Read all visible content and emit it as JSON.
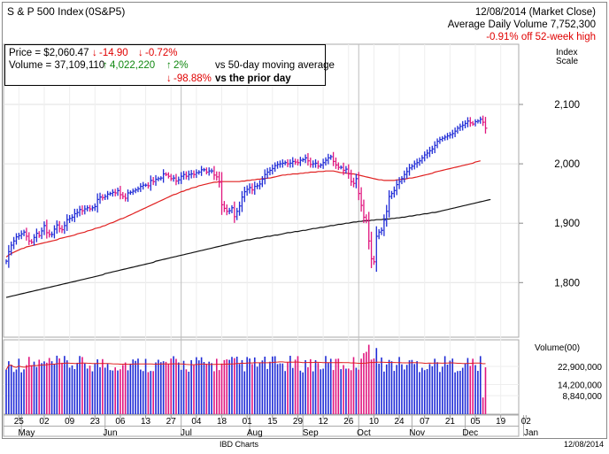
{
  "header": {
    "title": "S & P 500 Index",
    "symbol": "(0S&P5)",
    "date_line": "12/08/2014 (Market Close)",
    "avg_volume_line": "Average Daily Volume 7,752,300",
    "off_high_line": "-0.91% off 52-week high"
  },
  "info_box": {
    "price_label": "Price = $2,060.47",
    "price_change": "-14.90",
    "price_change_pct": "-0.72%",
    "volume_label": "Volume = 37,109,110",
    "volume_change": "4,022,220",
    "volume_change_pct": "2%",
    "vs_50day": "vs 50-day moving average",
    "prior_day_pct": "-98.88%",
    "vs_prior": "vs the prior day"
  },
  "axis": {
    "index_scale_line1": "Index",
    "index_scale_line2": "Scale",
    "volume_title": "Volume(00)"
  },
  "footer": {
    "source": "IBD Charts",
    "date": "12/08/2014"
  },
  "colors": {
    "up_bar": "#1f2bd6",
    "down_bar": "#e0157e",
    "ma50": "#e02020",
    "ma200": "#111111",
    "volume_ma": "#e02020",
    "red_text": "#e00000",
    "green_text": "#118811"
  },
  "chart_data": {
    "type": "ohlc",
    "price_ticks": [
      {
        "value": 1800,
        "label": "1,800"
      },
      {
        "value": 1900,
        "label": "1,900"
      },
      {
        "value": 2000,
        "label": "2,000"
      },
      {
        "value": 2100,
        "label": "2,100"
      }
    ],
    "volume_ticks": [
      {
        "value": 88400,
        "label": "8,840,000"
      },
      {
        "value": 142000,
        "label": "14,200,000"
      },
      {
        "value": 229000,
        "label": "22,900,000"
      }
    ],
    "x_day_labels": [
      {
        "day": 5,
        "label": "25"
      },
      {
        "day": 15,
        "label": "02"
      },
      {
        "day": 25,
        "label": "09"
      },
      {
        "day": 35,
        "label": "23"
      },
      {
        "day": 45,
        "label": "06"
      },
      {
        "day": 55,
        "label": "13"
      },
      {
        "day": 65,
        "label": "27"
      },
      {
        "day": 75,
        "label": "04"
      },
      {
        "day": 85,
        "label": "18"
      },
      {
        "day": 95,
        "label": "01"
      },
      {
        "day": 105,
        "label": "15"
      },
      {
        "day": 115,
        "label": "29"
      },
      {
        "day": 125,
        "label": "12"
      },
      {
        "day": 135,
        "label": "26"
      },
      {
        "day": 145,
        "label": "10"
      },
      {
        "day": 155,
        "label": "24"
      },
      {
        "day": 165,
        "label": "07"
      },
      {
        "day": 175,
        "label": "21"
      },
      {
        "day": 185,
        "label": "05"
      },
      {
        "day": 195,
        "label": "19"
      },
      {
        "day": 205,
        "label": "02"
      }
    ],
    "x_month_labels": [
      {
        "day": 8,
        "label": "May"
      },
      {
        "day": 41,
        "label": "Jun"
      },
      {
        "day": 71,
        "label": "Jul"
      },
      {
        "day": 98,
        "label": "Aug"
      },
      {
        "day": 120,
        "label": "Sep"
      },
      {
        "day": 141,
        "label": "Oct"
      },
      {
        "day": 162,
        "label": "Nov"
      },
      {
        "day": 183,
        "label": "Dec"
      },
      {
        "day": 207,
        "label": "Jan"
      }
    ],
    "month_divider_days": [
      6,
      39,
      69,
      96,
      117,
      139,
      160,
      181,
      204
    ],
    "price_series": [
      1836,
      1852,
      1863,
      1870,
      1877,
      1879,
      1882,
      1885,
      1878,
      1870,
      1868,
      1876,
      1883,
      1879,
      1887,
      1896,
      1884,
      1881,
      1881,
      1890,
      1897,
      1891,
      1889,
      1896,
      1906,
      1908,
      1910,
      1916,
      1918,
      1923,
      1921,
      1924,
      1926,
      1924,
      1926,
      1928,
      1940,
      1944,
      1943,
      1945,
      1949,
      1950,
      1952,
      1951,
      1955,
      1948,
      1945,
      1942,
      1951,
      1952,
      1954,
      1956,
      1958,
      1962,
      1964,
      1964,
      1963,
      1972,
      1970,
      1974,
      1975,
      1976,
      1983,
      1982,
      1979,
      1975,
      1976,
      1971,
      1973,
      1979,
      1982,
      1979,
      1982,
      1983,
      1982,
      1985,
      1986,
      1990,
      1990,
      1986,
      1988,
      1988,
      1981,
      1978,
      1969,
      1931,
      1925,
      1920,
      1921,
      1926,
      1911,
      1920,
      1929,
      1944,
      1953,
      1957,
      1960,
      1956,
      1962,
      1963,
      1966,
      1974,
      1982,
      1986,
      1989,
      1992,
      1997,
      1999,
      2000,
      2001,
      2002,
      2000,
      2001,
      2004,
      2003,
      2002,
      2006,
      2007,
      2010,
      2005,
      1999,
      2000,
      2001,
      1996,
      1998,
      2002,
      2006,
      2010,
      2012,
      2004,
      1998,
      1994,
      1994,
      1989,
      1991,
      1983,
      1970,
      1967,
      1975,
      1950,
      1930,
      1910,
      1905,
      1870,
      1840,
      1835,
      1878,
      1885,
      1888,
      1905,
      1920,
      1945,
      1950,
      1955,
      1965,
      1970,
      1975,
      1982,
      1987,
      1993,
      1996,
      2000,
      2002,
      2005,
      2010,
      2015,
      2018,
      2022,
      2025,
      2031,
      2038,
      2041,
      2043,
      2045,
      2047,
      2049,
      2051,
      2055,
      2060,
      2063,
      2065,
      2068,
      2072,
      2069,
      2067,
      2071,
      2072,
      2075,
      2070,
      2060
    ],
    "ma50_series": [
      1843,
      1846,
      1849,
      1851,
      1853,
      1855,
      1857,
      1858,
      1860,
      1861,
      1862,
      1863,
      1864,
      1865,
      1866,
      1867,
      1868,
      1869,
      1870,
      1871,
      1872,
      1874,
      1875,
      1876,
      1877,
      1878,
      1879,
      1880,
      1882,
      1883,
      1884,
      1885,
      1887,
      1888,
      1889,
      1891,
      1892,
      1893,
      1895,
      1896,
      1898,
      1900,
      1901,
      1903,
      1905,
      1907,
      1908,
      1910,
      1912,
      1914,
      1916,
      1918,
      1920,
      1922,
      1924,
      1926,
      1928,
      1930,
      1932,
      1934,
      1936,
      1938,
      1940,
      1942,
      1944,
      1946,
      1948,
      1949,
      1951,
      1953,
      1954,
      1956,
      1957,
      1959,
      1960,
      1961,
      1963,
      1964,
      1965,
      1966,
      1967,
      1968,
      1969,
      1969,
      1970,
      1970,
      1970,
      1970,
      1970,
      1970,
      1970,
      1970,
      1970,
      1971,
      1971,
      1972,
      1972,
      1973,
      1973,
      1974,
      1974,
      1975,
      1975,
      1976,
      1976,
      1977,
      1978,
      1979,
      1980,
      1981,
      1981,
      1982,
      1982,
      1983,
      1983,
      1983,
      1984,
      1984,
      1985,
      1985,
      1986,
      1986,
      1986,
      1987,
      1987,
      1987,
      1988,
      1988,
      1988,
      1988,
      1987,
      1986,
      1985,
      1985,
      1984,
      1984,
      1983,
      1983,
      1982,
      1981,
      1980,
      1979,
      1978,
      1977,
      1976,
      1975,
      1974,
      1973,
      1973,
      1972,
      1972,
      1972,
      1972,
      1972,
      1973,
      1973,
      1974,
      1974,
      1975,
      1976,
      1976,
      1977,
      1978,
      1979,
      1980,
      1981,
      1982,
      1983,
      1984,
      1986,
      1987,
      1988,
      1989,
      1990,
      1991,
      1992,
      1993,
      1994,
      1995,
      1996,
      1997,
      1998,
      1999,
      2000,
      2001,
      2003,
      2004,
      2005
    ],
    "ma200_series": [
      1775,
      1776,
      1777,
      1778,
      1779,
      1780,
      1781,
      1782,
      1783,
      1784,
      1785,
      1786,
      1787,
      1788,
      1789,
      1790,
      1791,
      1792,
      1793,
      1794,
      1795,
      1796,
      1797,
      1798,
      1799,
      1800,
      1801,
      1802,
      1803,
      1804,
      1805,
      1806,
      1807,
      1808,
      1809,
      1810,
      1811,
      1812,
      1813,
      1815,
      1816,
      1817,
      1818,
      1819,
      1820,
      1821,
      1822,
      1823,
      1824,
      1825,
      1826,
      1827,
      1828,
      1829,
      1830,
      1831,
      1832,
      1833,
      1834,
      1836,
      1837,
      1838,
      1839,
      1840,
      1841,
      1842,
      1843,
      1844,
      1845,
      1846,
      1847,
      1848,
      1849,
      1850,
      1851,
      1852,
      1853,
      1854,
      1855,
      1856,
      1857,
      1858,
      1859,
      1860,
      1861,
      1862,
      1863,
      1864,
      1865,
      1866,
      1867,
      1868,
      1869,
      1870,
      1871,
      1872,
      1872,
      1873,
      1874,
      1875,
      1875,
      1876,
      1877,
      1878,
      1878,
      1879,
      1880,
      1880,
      1881,
      1882,
      1883,
      1884,
      1884,
      1885,
      1886,
      1886,
      1887,
      1888,
      1888,
      1889,
      1890,
      1891,
      1891,
      1892,
      1893,
      1893,
      1894,
      1895,
      1896,
      1896,
      1897,
      1898,
      1898,
      1899,
      1900,
      1900,
      1901,
      1902,
      1902,
      1903,
      1903,
      1904,
      1904,
      1904,
      1905,
      1905,
      1906,
      1906,
      1906,
      1907,
      1907,
      1907,
      1908,
      1908,
      1909,
      1909,
      1910,
      1910,
      1911,
      1912,
      1912,
      1913,
      1914,
      1914,
      1915,
      1916,
      1916,
      1917,
      1918,
      1918,
      1919,
      1920,
      1921,
      1922,
      1923,
      1924,
      1925,
      1926,
      1927,
      1928,
      1929,
      1930,
      1931,
      1932,
      1933,
      1934,
      1935,
      1936,
      1937,
      1938,
      1939,
      1940
    ]
  }
}
